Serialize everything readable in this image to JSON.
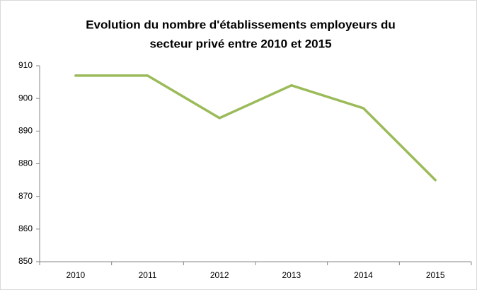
{
  "chart_data": {
    "type": "line",
    "title": [
      "Evolution du nombre d'établissements employeurs du",
      "secteur privé entre 2010 et 2015"
    ],
    "categories": [
      "2010",
      "2011",
      "2012",
      "2013",
      "2014",
      "2015"
    ],
    "values": [
      907,
      907,
      894,
      904,
      897,
      875
    ],
    "color": "#9bbb59",
    "ylim": [
      850,
      910
    ],
    "yticks": [
      850,
      860,
      870,
      880,
      890,
      900,
      910
    ],
    "grid": false
  }
}
